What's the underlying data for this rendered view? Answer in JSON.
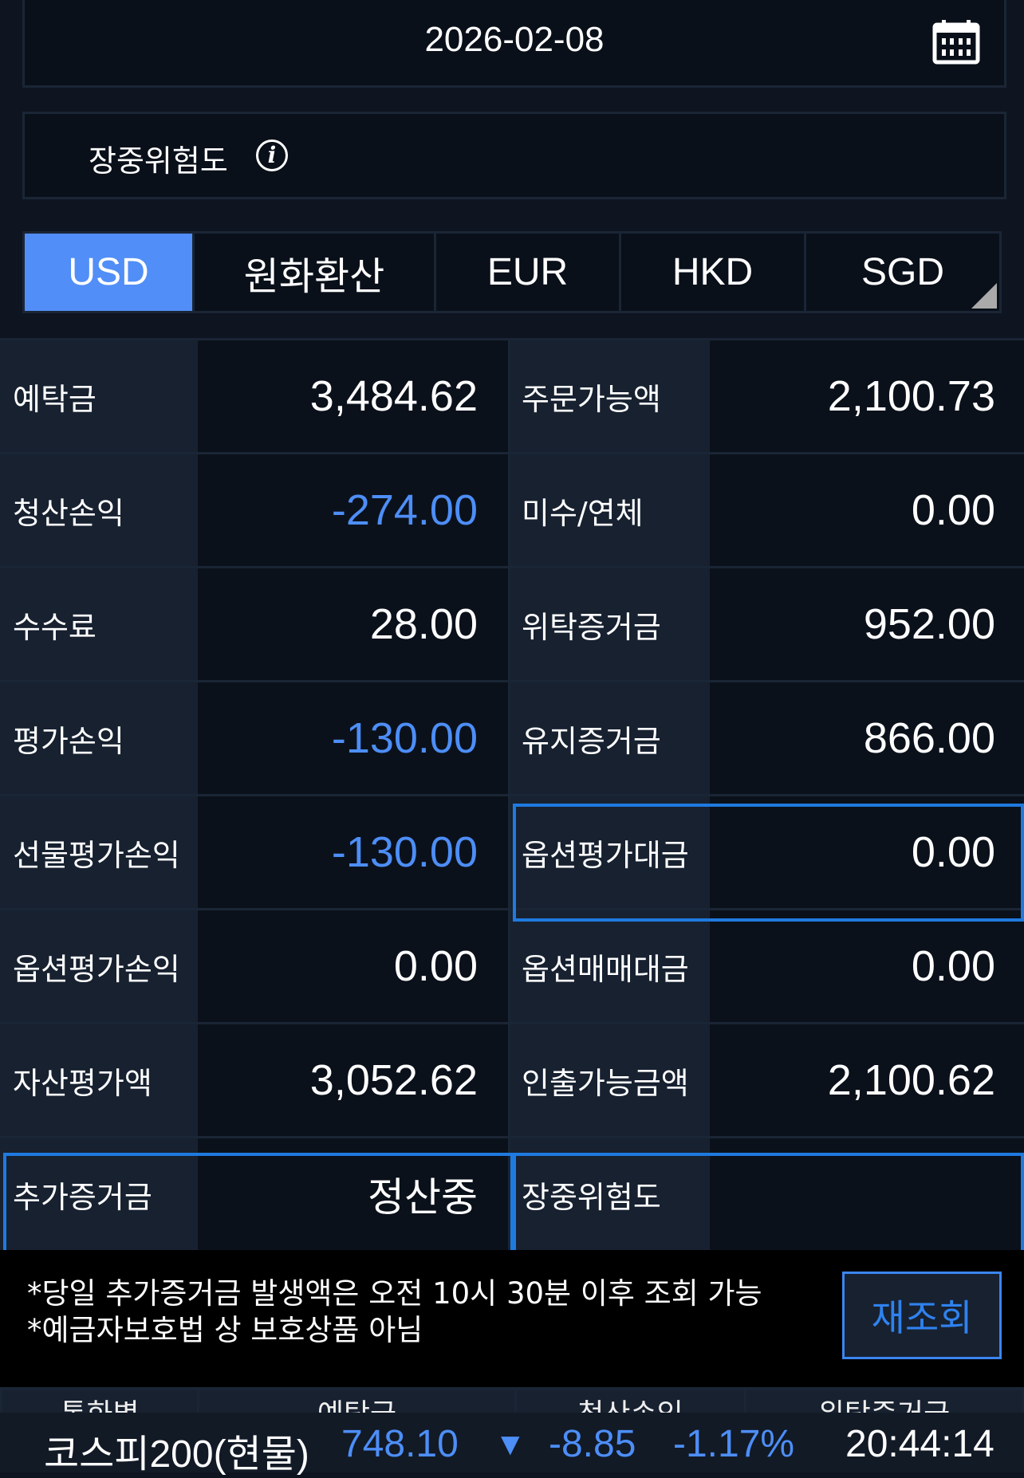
{
  "date": "2026-02-08",
  "risk_label": "장중위험도",
  "tabs": [
    "USD",
    "원화환산",
    "EUR",
    "HKD",
    "SGD"
  ],
  "active_tab": "USD",
  "colors": {
    "accent": "#528ef7",
    "negative": "#4d8ef7",
    "highlight_border": "#1f7ae0"
  },
  "rows": [
    {
      "l1": "예탁금",
      "v1": "3,484.62",
      "l2": "주문가능액",
      "v2": "2,100.73"
    },
    {
      "l1": "청산손익",
      "v1": "-274.00",
      "l2": "미수/연체",
      "v2": "0.00"
    },
    {
      "l1": "수수료",
      "v1": "28.00",
      "l2": "위탁증거금",
      "v2": "952.00"
    },
    {
      "l1": "평가손익",
      "v1": "-130.00",
      "l2": "유지증거금",
      "v2": "866.00"
    },
    {
      "l1": "선물평가손익",
      "v1": "-130.00",
      "l2": "옵션평가대금",
      "v2": "0.00"
    },
    {
      "l1": "옵션평가손익",
      "v1": "0.00",
      "l2": "옵션매매대금",
      "v2": "0.00"
    },
    {
      "l1": "자산평가액",
      "v1": "3,052.62",
      "l2": "인출가능금액",
      "v2": "2,100.62"
    },
    {
      "l1": "추가증거금",
      "v1": "정산중",
      "l2": "장중위험도",
      "v2": ""
    }
  ],
  "notice": [
    "*당일 추가증거금 발생액은 오전 10시 30분 이후 조회 가능",
    "*예금자보호법 상 보호상품 아님"
  ],
  "refresh_label": "재조회",
  "table_headers": [
    "통화별",
    "예탁금",
    "청산손익",
    "위탁증거금"
  ],
  "ticker": {
    "name": "코스피200(현물)",
    "price": "748.10",
    "direction": "down",
    "change": "-8.85",
    "change_pct": "-1.17%",
    "time": "20:44:14"
  }
}
